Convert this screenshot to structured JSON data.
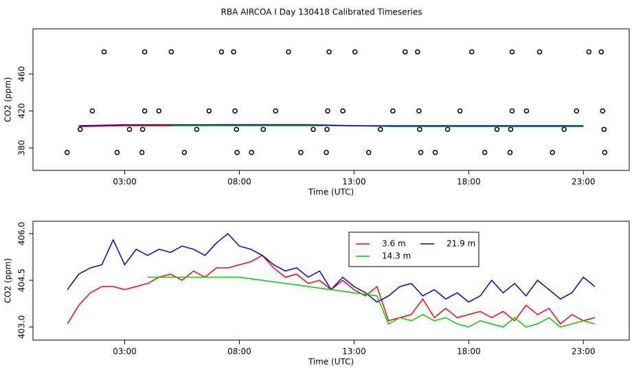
{
  "chart_data": [
    {
      "type": "line",
      "title": "RBA AIRCOA I  Day 130418  Calibrated Timeseries",
      "xlabel": "Time (UTC)",
      "ylabel": "CO2 (ppm)",
      "xlim": [
        -1,
        25
      ],
      "ylim": [
        355.6,
        508.9
      ],
      "xticks": [
        {
          "value": 3,
          "label": "03:00"
        },
        {
          "value": 8,
          "label": "08:00"
        },
        {
          "value": 13,
          "label": "13:00"
        },
        {
          "value": 18,
          "label": "18:00"
        },
        {
          "value": 23,
          "label": "23:00"
        }
      ],
      "yticks": [
        380,
        420,
        460
      ],
      "series": [
        {
          "type": "scatter",
          "color": "#000000",
          "x": [
            2.1,
            3.87,
            5.03,
            7.22,
            7.75,
            10.14,
            11.91,
            13.04,
            15.23,
            15.77,
            18.13,
            19.89,
            21.09,
            23.24,
            23.78,
            1.59,
            3.87,
            4.49,
            6.68,
            7.81,
            9.58,
            11.85,
            12.51,
            14.69,
            15.83,
            17.62,
            19.89,
            20.52,
            22.7,
            23.84,
            1.06,
            3.21,
            3.78,
            6.14,
            7.87,
            9.04,
            11.22,
            11.82,
            14.15,
            15.86,
            17.08,
            19.23,
            19.83,
            22.16,
            23.9,
            0.49,
            2.67,
            3.75,
            5.6,
            7.9,
            8.53,
            10.68,
            11.79,
            13.64,
            15.91,
            16.54,
            18.7,
            19.8,
            21.65,
            23.93
          ],
          "values": [
            484,
            484,
            484,
            484,
            484,
            484,
            484,
            484,
            484,
            484,
            484,
            484,
            484,
            484,
            484,
            420,
            420,
            420,
            420,
            420,
            420,
            420,
            420,
            420,
            420,
            420,
            420,
            420,
            420,
            420,
            400,
            400,
            400,
            400,
            400,
            400,
            400,
            400,
            400,
            400,
            400,
            400,
            400,
            400,
            400,
            375,
            375,
            375,
            375,
            375,
            375,
            375,
            375,
            375,
            375,
            375,
            375,
            375,
            375,
            375
          ]
        },
        {
          "type": "line",
          "color": "#ff0000",
          "x": [
            1,
            3,
            5,
            7,
            9,
            11,
            13,
            15,
            17,
            19,
            21,
            23
          ],
          "values": [
            403,
            404,
            404,
            405,
            405,
            405,
            404,
            403,
            403,
            403,
            403,
            403
          ]
        },
        {
          "type": "line",
          "color": "#00cc00",
          "x": [
            1,
            3,
            5,
            7,
            9,
            11,
            13,
            15,
            17,
            19,
            21,
            23
          ],
          "values": [
            null,
            null,
            404,
            404,
            404,
            404,
            404,
            403,
            403,
            403,
            403,
            403
          ]
        },
        {
          "type": "line",
          "color": "#0000cc",
          "x": [
            1,
            3,
            5,
            7,
            9,
            11,
            13,
            15,
            17,
            19,
            21,
            23
          ],
          "values": [
            404,
            405,
            405,
            405,
            405,
            405,
            404,
            404,
            404,
            404,
            404,
            404
          ]
        }
      ]
    },
    {
      "type": "line",
      "xlabel": "Time (UTC)",
      "ylabel": "CO2 (ppm)",
      "xlim": [
        -1,
        25
      ],
      "ylim": [
        402.58,
        406.4
      ],
      "xticks": [
        {
          "value": 3,
          "label": "03:00"
        },
        {
          "value": 8,
          "label": "08:00"
        },
        {
          "value": 13,
          "label": "13:00"
        },
        {
          "value": 18,
          "label": "18:00"
        },
        {
          "value": 23,
          "label": "23:00"
        }
      ],
      "yticks": [
        {
          "value": 403,
          "label": "403.0"
        },
        {
          "value": 404.5,
          "label": "404.5"
        },
        {
          "value": 406,
          "label": "406.0"
        }
      ],
      "legend": true,
      "series": [
        {
          "name": "3.6 m",
          "color": "#ff0000",
          "x": [
            0.5,
            1,
            1.5,
            2,
            2.5,
            3,
            3.5,
            4,
            4.5,
            5,
            5.5,
            6,
            6.5,
            7,
            7.5,
            8,
            8.5,
            9,
            9.5,
            10,
            10.5,
            11,
            11.5,
            12,
            12.5,
            13,
            13.5,
            14,
            14.5,
            15,
            15.5,
            16,
            16.5,
            17,
            17.5,
            18,
            18.5,
            19,
            19.5,
            20,
            20.5,
            21,
            21.5,
            22,
            22.5,
            23,
            23.5
          ],
          "values": [
            403.1,
            403.7,
            404.1,
            404.3,
            404.3,
            404.2,
            404.3,
            404.4,
            404.6,
            404.7,
            404.5,
            404.8,
            404.6,
            404.9,
            404.9,
            405.0,
            405.1,
            405.3,
            404.9,
            404.6,
            404.7,
            404.4,
            404.5,
            404.2,
            404.5,
            404.2,
            404.0,
            404.3,
            403.2,
            403.3,
            403.4,
            403.9,
            403.3,
            403.6,
            403.3,
            403.4,
            403.5,
            403.3,
            403.5,
            403.2,
            403.7,
            403.4,
            403.6,
            403.1,
            403.4,
            403.2,
            403.3
          ]
        },
        {
          "name": "21.9 m",
          "color": "#0000cc",
          "x": [
            0.5,
            1,
            1.5,
            2,
            2.5,
            3,
            3.5,
            4,
            4.5,
            5,
            5.5,
            6,
            6.5,
            7,
            7.5,
            8,
            8.5,
            9,
            9.5,
            10,
            10.5,
            11,
            11.5,
            12,
            12.5,
            13,
            13.5,
            14,
            14.5,
            15,
            15.5,
            16,
            16.5,
            17,
            17.5,
            18,
            18.5,
            19,
            19.5,
            20,
            20.5,
            21,
            21.5,
            22,
            22.5,
            23,
            23.5
          ],
          "values": [
            404.2,
            404.7,
            404.9,
            405.0,
            405.8,
            405.0,
            405.5,
            405.3,
            405.5,
            405.4,
            405.6,
            405.5,
            405.3,
            405.7,
            406.0,
            405.6,
            405.5,
            405.3,
            405.0,
            404.8,
            404.9,
            404.6,
            404.8,
            404.2,
            404.6,
            404.3,
            404.1,
            403.8,
            404.0,
            404.3,
            404.4,
            404.0,
            404.2,
            403.9,
            404.1,
            403.8,
            404.0,
            404.5,
            404.1,
            404.4,
            404.0,
            404.5,
            404.2,
            403.9,
            404.1,
            404.6,
            404.3
          ]
        },
        {
          "name": "14.3 m",
          "color": "#00cc00",
          "x": [
            0.5,
            1,
            1.5,
            2,
            2.5,
            3,
            3.5,
            4,
            4.5,
            5,
            5.5,
            6,
            6.5,
            7,
            7.5,
            8,
            8.5,
            9,
            9.5,
            10,
            10.5,
            11,
            11.5,
            12,
            12.5,
            13,
            13.5,
            14,
            14.5,
            15,
            15.5,
            16,
            16.5,
            17,
            17.5,
            18,
            18.5,
            19,
            19.5,
            20,
            20.5,
            21,
            21.5,
            22,
            22.5,
            23,
            23.5
          ],
          "values": [
            null,
            null,
            null,
            null,
            null,
            null,
            null,
            404.6,
            404.6,
            404.6,
            404.6,
            404.6,
            404.6,
            404.6,
            404.6,
            404.6,
            404.55,
            404.5,
            404.45,
            404.4,
            404.35,
            404.3,
            404.25,
            404.2,
            404.15,
            404.1,
            404.05,
            404.0,
            403.1,
            403.3,
            403.2,
            403.4,
            403.2,
            403.3,
            403.1,
            403.0,
            403.2,
            403.1,
            403.0,
            403.3,
            403.0,
            403.1,
            403.3,
            403.0,
            403.1,
            403.2,
            403.1
          ]
        }
      ]
    }
  ]
}
